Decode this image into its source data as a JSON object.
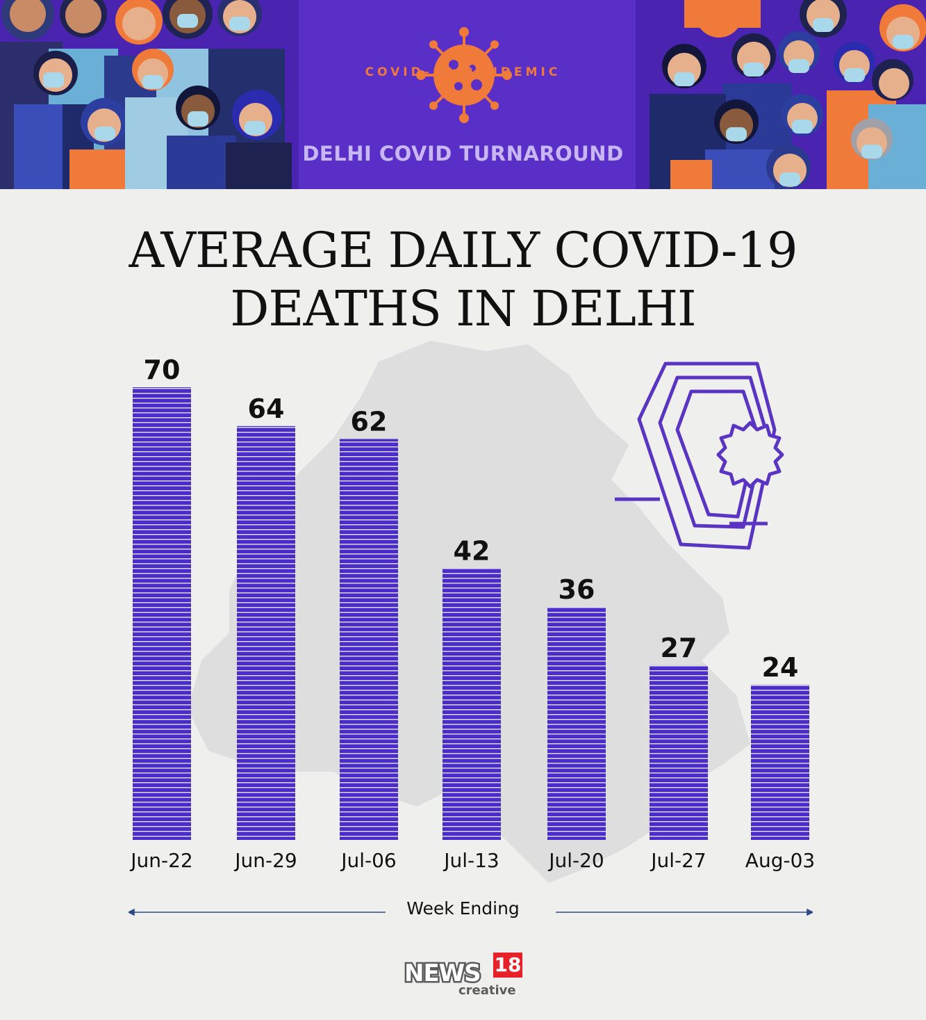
{
  "header": {
    "eyebrow": "COVID-19 PANDEMIC",
    "subtitle": "DELHI COVID TURNAROUND"
  },
  "colors": {
    "banner": "#5a2fc8",
    "bar": "#4a2cc9",
    "bar_stripe": "#ffffff",
    "accent_orange": "#f07a3a",
    "subtitle": "#c7b8f5",
    "background": "#efefee"
  },
  "chart_data": {
    "type": "bar",
    "title": "AVERAGE DAILY COVID-19 DEATHS IN DELHI",
    "title_lines": [
      "AVERAGE DAILY COVID-19",
      "DEATHS IN DELHI"
    ],
    "xlabel": "Week Ending",
    "ylabel": "",
    "categories": [
      "Jun-22",
      "Jun-29",
      "Jul-06",
      "Jul-13",
      "Jul-20",
      "Jul-27",
      "Aug-03"
    ],
    "values": [
      70,
      64,
      62,
      42,
      36,
      27,
      24
    ],
    "data_labels": [
      "70",
      "64",
      "62",
      "42",
      "36",
      "27",
      "24"
    ],
    "ylim": [
      0,
      70
    ],
    "grid": false,
    "legend": "none"
  },
  "logo": {
    "brand": "NEWS",
    "number": "18",
    "tagline": "creative"
  },
  "icons": [
    "virus-icon",
    "coffin-virus-icon",
    "delhi-map-silhouette",
    "crowd-illustration"
  ]
}
